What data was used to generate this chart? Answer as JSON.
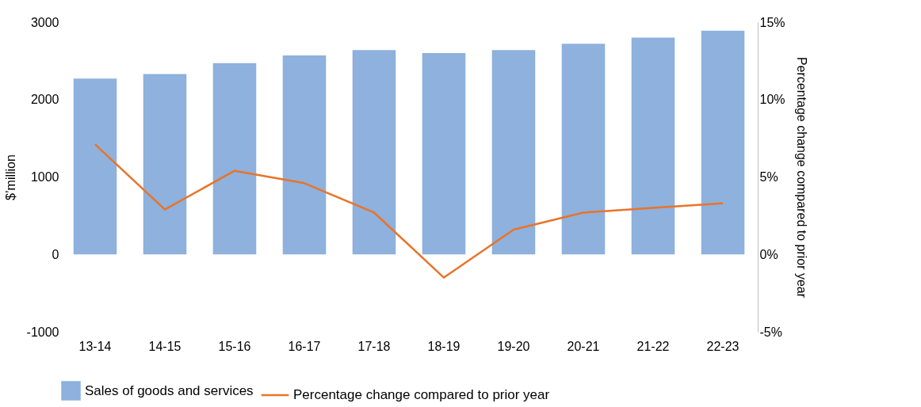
{
  "chart_data": {
    "type": "bar",
    "categories": [
      "13-14",
      "14-15",
      "15-16",
      "16-17",
      "17-18",
      "18-19",
      "19-20",
      "20-21",
      "21-22",
      "22-23"
    ],
    "ylabel": "$’million",
    "y2label": "Percentage change compared to prior year",
    "ylim": [
      -1000,
      3000
    ],
    "yticks": [
      -1000,
      0,
      1000,
      2000,
      3000
    ],
    "y2lim": [
      -5,
      15
    ],
    "y2ticks": [
      {
        "value": -5,
        "label": "-5%"
      },
      {
        "value": 0,
        "label": "0%"
      },
      {
        "value": 5,
        "label": "5%"
      },
      {
        "value": 10,
        "label": "10%"
      },
      {
        "value": 15,
        "label": "15%"
      }
    ],
    "grid": false,
    "legend": "bottom",
    "series": [
      {
        "name": "Sales of goods and services",
        "color": "#8eb1dd",
        "values": [
          2270,
          2330,
          2470,
          2570,
          2640,
          2600,
          2640,
          2720,
          2800,
          2890
        ]
      },
      {
        "name": "Percentage change compared to prior year",
        "type": "line",
        "axis": "y2",
        "color": "#e8742a",
        "values": [
          7.1,
          2.9,
          5.4,
          4.6,
          2.7,
          -1.5,
          1.6,
          2.7,
          3.0,
          3.3
        ]
      }
    ]
  }
}
